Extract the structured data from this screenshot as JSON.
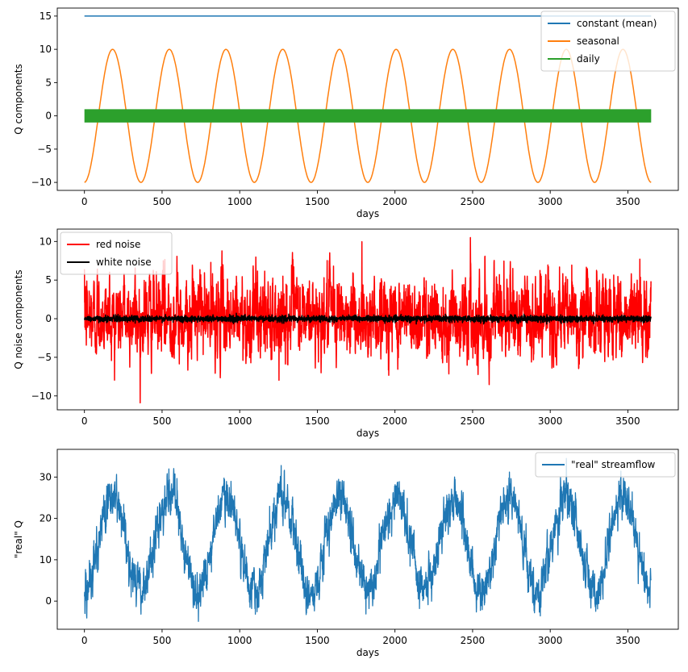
{
  "chart_data": [
    {
      "type": "line",
      "title": "",
      "xlabel": "days",
      "ylabel": "Q components",
      "xlim": [
        -175,
        3825
      ],
      "ylim": [
        -11.2,
        16.2
      ],
      "xticks": [
        0,
        500,
        1000,
        1500,
        2000,
        2500,
        3000,
        3500
      ],
      "yticks": [
        -10,
        -5,
        0,
        5,
        10,
        15
      ],
      "legend_position": "top-right",
      "grid": false,
      "series": [
        {
          "name": "constant (mean)",
          "kind": "constant",
          "value": 15,
          "x_range": [
            0,
            3650
          ],
          "color": "#1f77b4"
        },
        {
          "name": "seasonal",
          "kind": "sinusoid",
          "amplitude": 10,
          "period_days": 365.25,
          "phase_shift_days": -90,
          "x_range": [
            0,
            3650
          ],
          "color": "#ff7f0e"
        },
        {
          "name": "daily",
          "kind": "band",
          "low": -1,
          "high": 1,
          "x_range": [
            0,
            3650
          ],
          "color": "#2ca02c"
        }
      ]
    },
    {
      "type": "line",
      "title": "",
      "xlabel": "days",
      "ylabel": "Q noise components",
      "xlim": [
        -175,
        3825
      ],
      "ylim": [
        -11.8,
        11.6
      ],
      "xticks": [
        0,
        500,
        1000,
        1500,
        2000,
        2500,
        3000,
        3500
      ],
      "yticks": [
        -10,
        -5,
        0,
        5,
        10
      ],
      "legend_position": "top-left",
      "grid": false,
      "series": [
        {
          "name": "red noise",
          "kind": "noise",
          "std": 3.3,
          "min": -10.9,
          "max": 10.5,
          "x_range": [
            0,
            3650
          ],
          "color": "#ff0000"
        },
        {
          "name": "white noise",
          "kind": "noise",
          "std": 0.25,
          "min": -0.7,
          "max": 0.7,
          "x_range": [
            0,
            3650
          ],
          "color": "#000000"
        }
      ]
    },
    {
      "type": "line",
      "title": "",
      "xlabel": "days",
      "ylabel": "\"real\" Q",
      "xlim": [
        -175,
        3825
      ],
      "ylim": [
        -6.8,
        36.7
      ],
      "xticks": [
        0,
        500,
        1000,
        1500,
        2000,
        2500,
        3000,
        3500
      ],
      "yticks": [
        0,
        10,
        20,
        30
      ],
      "legend_position": "top-right",
      "grid": false,
      "series": [
        {
          "name": "\"real\" streamflow",
          "kind": "sum",
          "mean": 15,
          "seasonal_amplitude": 10,
          "noise_std": 3.5,
          "min": -4.9,
          "max": 34.5,
          "x_range": [
            0,
            3650
          ],
          "color": "#1f77b4"
        }
      ]
    }
  ]
}
